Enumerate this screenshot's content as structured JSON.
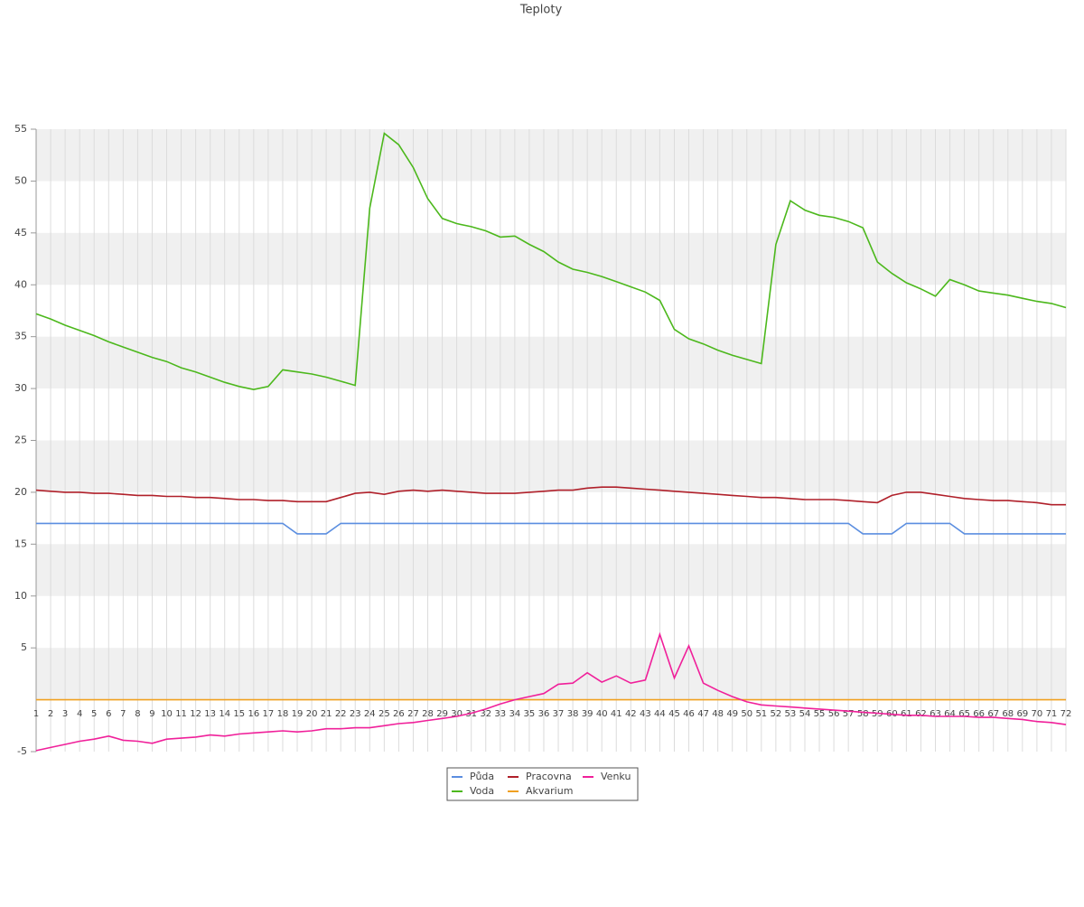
{
  "chart_data": {
    "type": "line",
    "title": "Teploty",
    "categories": [
      1,
      2,
      3,
      4,
      5,
      6,
      7,
      8,
      9,
      10,
      11,
      12,
      13,
      14,
      15,
      16,
      17,
      18,
      19,
      20,
      21,
      22,
      23,
      24,
      25,
      26,
      27,
      28,
      29,
      30,
      31,
      32,
      33,
      34,
      35,
      36,
      37,
      38,
      39,
      40,
      41,
      42,
      43,
      44,
      45,
      46,
      47,
      48,
      49,
      50,
      51,
      52,
      53,
      54,
      55,
      56,
      57,
      58,
      59,
      60,
      61,
      62,
      63,
      64,
      65,
      66,
      67,
      68,
      69,
      70,
      71,
      72
    ],
    "ylim": [
      -5,
      55
    ],
    "yticks": [
      -5,
      5,
      10,
      15,
      20,
      25,
      30,
      35,
      40,
      45,
      50,
      55
    ],
    "grid": true,
    "legend": "bottom",
    "series": [
      {
        "name": "Půda",
        "color": "#5b8ee0",
        "values": [
          17,
          17,
          17,
          17,
          17,
          17,
          17,
          17,
          17,
          17,
          17,
          17,
          17,
          17,
          17,
          17,
          17,
          17,
          16,
          16,
          16,
          17,
          17,
          17,
          17,
          17,
          17,
          17,
          17,
          17,
          17,
          17,
          17,
          17,
          17,
          17,
          17,
          17,
          17,
          17,
          17,
          17,
          17,
          17,
          17,
          17,
          17,
          17,
          17,
          17,
          17,
          17,
          17,
          17,
          17,
          17,
          17,
          16,
          16,
          16,
          17,
          17,
          17,
          17,
          16,
          16,
          16,
          16,
          16,
          16,
          16,
          16
        ]
      },
      {
        "name": "Voda",
        "color": "#4cb81c",
        "values": [
          37.2,
          36.7,
          36.1,
          35.6,
          35.1,
          34.5,
          34.0,
          33.5,
          33.0,
          32.6,
          32.0,
          31.6,
          31.1,
          30.6,
          30.2,
          29.9,
          30.2,
          31.8,
          31.6,
          31.4,
          31.1,
          30.7,
          30.3,
          47.4,
          54.6,
          53.5,
          51.3,
          48.3,
          46.4,
          45.9,
          45.6,
          45.2,
          44.6,
          44.7,
          43.9,
          43.2,
          42.2,
          41.5,
          41.2,
          40.8,
          40.3,
          39.8,
          39.3,
          38.5,
          35.7,
          34.8,
          34.3,
          33.7,
          33.2,
          32.8,
          32.4,
          43.9,
          48.1,
          47.2,
          46.7,
          46.5,
          46.1,
          45.5,
          42.2,
          41.1,
          40.2,
          39.6,
          38.9,
          40.5,
          40.0,
          39.4,
          39.2,
          39.0,
          38.7,
          38.4,
          38.2,
          37.8
        ]
      },
      {
        "name": "Pracovna",
        "color": "#b0202a",
        "values": [
          20.2,
          20.1,
          20.0,
          20.0,
          19.9,
          19.9,
          19.8,
          19.7,
          19.7,
          19.6,
          19.6,
          19.5,
          19.5,
          19.4,
          19.3,
          19.3,
          19.2,
          19.2,
          19.1,
          19.1,
          19.1,
          19.5,
          19.9,
          20.0,
          19.8,
          20.1,
          20.2,
          20.1,
          20.2,
          20.1,
          20.0,
          19.9,
          19.9,
          19.9,
          20.0,
          20.1,
          20.2,
          20.2,
          20.4,
          20.5,
          20.5,
          20.4,
          20.3,
          20.2,
          20.1,
          20.0,
          19.9,
          19.8,
          19.7,
          19.6,
          19.5,
          19.5,
          19.4,
          19.3,
          19.3,
          19.3,
          19.2,
          19.1,
          19.0,
          19.7,
          20.0,
          20.0,
          19.8,
          19.6,
          19.4,
          19.3,
          19.2,
          19.2,
          19.1,
          19.0,
          18.8,
          18.8
        ]
      },
      {
        "name": "Akvarium",
        "color": "#f0a020",
        "values": [
          0,
          0,
          0,
          0,
          0,
          0,
          0,
          0,
          0,
          0,
          0,
          0,
          0,
          0,
          0,
          0,
          0,
          0,
          0,
          0,
          0,
          0,
          0,
          0,
          0,
          0,
          0,
          0,
          0,
          0,
          0,
          0,
          0,
          0,
          0,
          0,
          0,
          0,
          0,
          0,
          0,
          0,
          0,
          0,
          0,
          0,
          0,
          0,
          0,
          0,
          0,
          0,
          0,
          0,
          0,
          0,
          0,
          0,
          0,
          0,
          0,
          0,
          0,
          0,
          0,
          0,
          0,
          0,
          0,
          0,
          0,
          0
        ]
      },
      {
        "name": "Venku",
        "color": "#f0209a",
        "values": [
          -4.9,
          -4.6,
          -4.3,
          -4.0,
          -3.8,
          -3.5,
          -3.9,
          -4.0,
          -4.2,
          -3.8,
          -3.7,
          -3.6,
          -3.4,
          -3.5,
          -3.3,
          -3.2,
          -3.1,
          -3.0,
          -3.1,
          -3.0,
          -2.8,
          -2.8,
          -2.7,
          -2.7,
          -2.5,
          -2.3,
          -2.2,
          -2.0,
          -1.8,
          -1.6,
          -1.3,
          -0.9,
          -0.4,
          0.0,
          0.3,
          0.6,
          1.5,
          1.6,
          2.6,
          1.7,
          2.3,
          1.6,
          1.9,
          6.3,
          2.1,
          5.2,
          1.6,
          0.9,
          0.3,
          -0.2,
          -0.5,
          -0.6,
          -0.7,
          -0.8,
          -0.9,
          -1.0,
          -1.1,
          -1.2,
          -1.3,
          -1.4,
          -1.5,
          -1.5,
          -1.6,
          -1.6,
          -1.6,
          -1.7,
          -1.7,
          -1.8,
          -1.9,
          -2.1,
          -2.2,
          -2.4
        ]
      }
    ]
  }
}
